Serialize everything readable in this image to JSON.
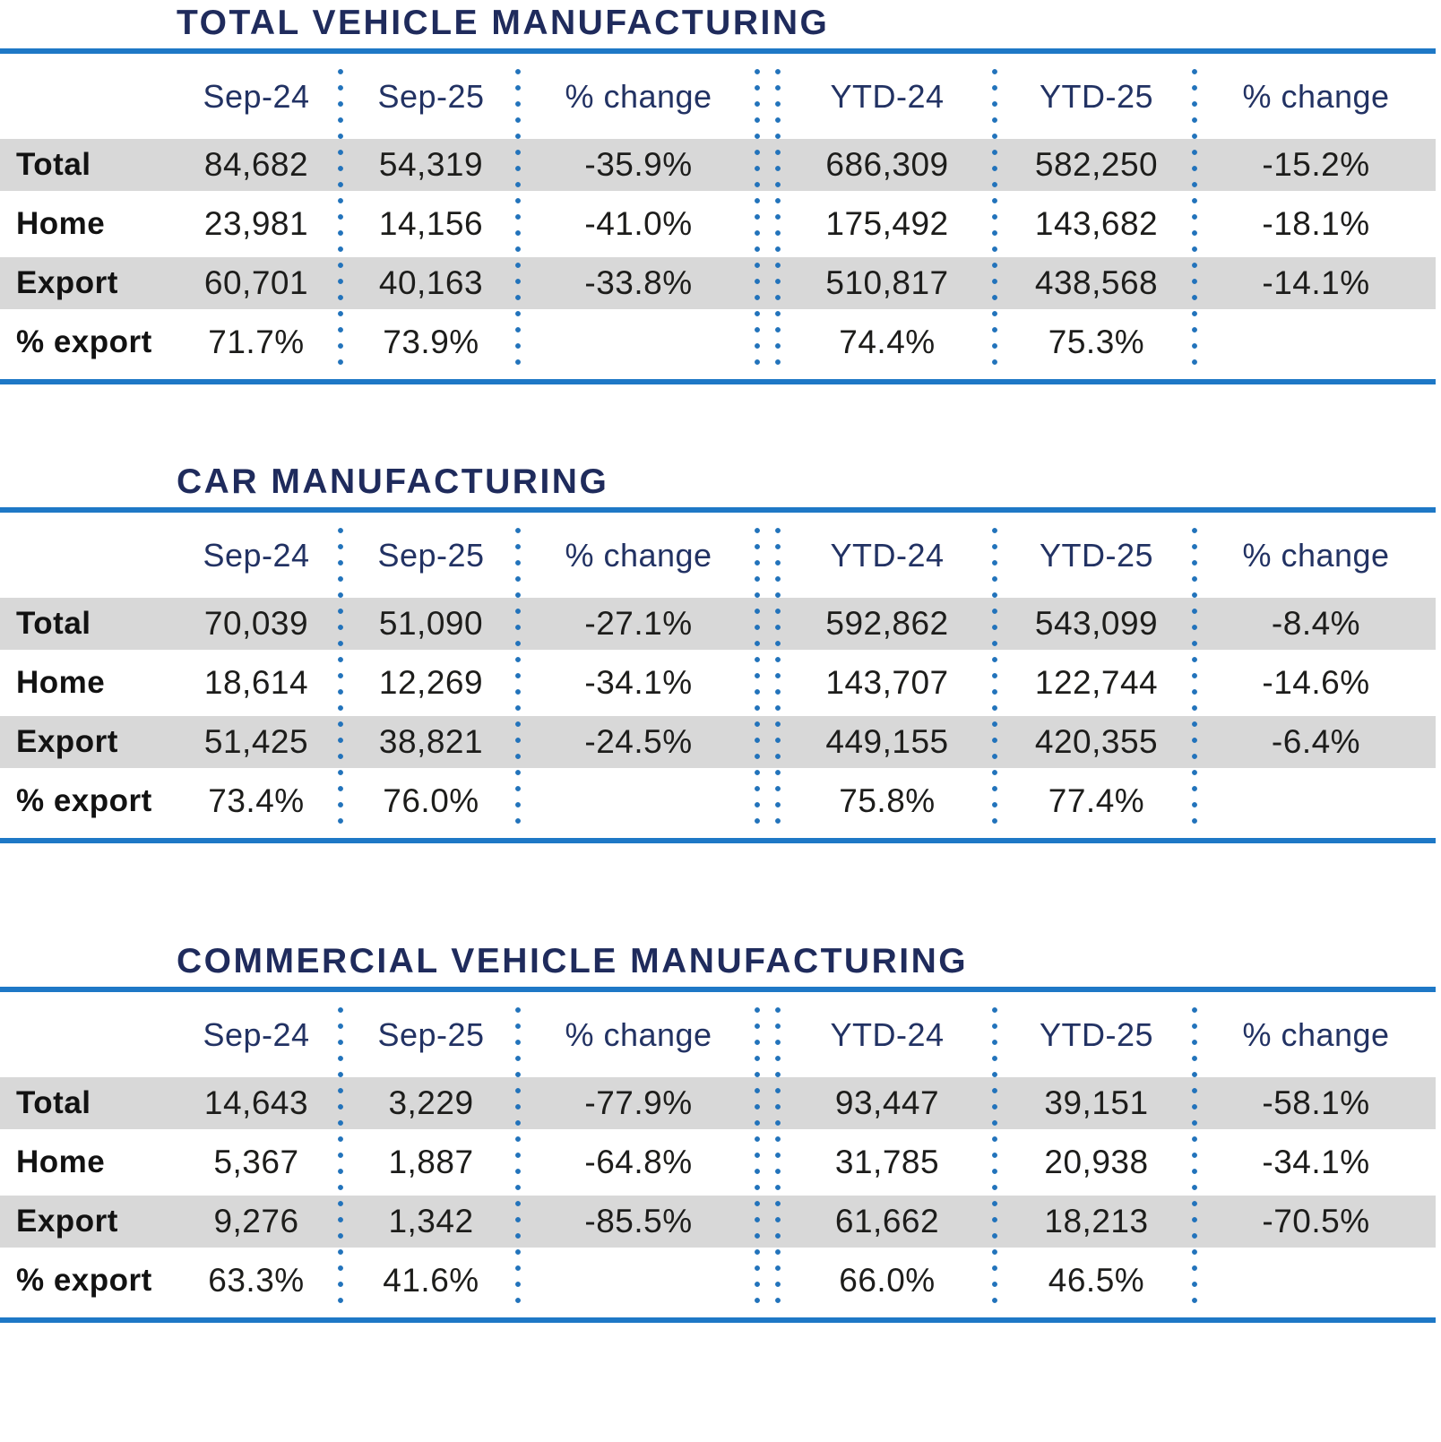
{
  "colors": {
    "title_navy": "#1f2b5c",
    "header_navy": "#223263",
    "rule_blue": "#1e78c6",
    "dot_blue": "#2273bb",
    "row_shade_gray": "#d8d8d8",
    "value_black": "#1d1d1b"
  },
  "chart_data": [
    {
      "type": "table",
      "title": "TOTAL VEHICLE MANUFACTURING",
      "columns": [
        "Sep-24",
        "Sep-25",
        "% change",
        "YTD-24",
        "YTD-25",
        "% change"
      ],
      "rows": [
        {
          "label": "Total",
          "values": [
            "84,682",
            "54,319",
            "-35.9%",
            "686,309",
            "582,250",
            "-15.2%"
          ]
        },
        {
          "label": "Home",
          "values": [
            "23,981",
            "14,156",
            "-41.0%",
            "175,492",
            "143,682",
            "-18.1%"
          ]
        },
        {
          "label": "Export",
          "values": [
            "60,701",
            "40,163",
            "-33.8%",
            "510,817",
            "438,568",
            "-14.1%"
          ]
        },
        {
          "label": "% export",
          "values": [
            "71.7%",
            "73.9%",
            "",
            "74.4%",
            "75.3%",
            ""
          ]
        }
      ]
    },
    {
      "type": "table",
      "title": "CAR MANUFACTURING",
      "columns": [
        "Sep-24",
        "Sep-25",
        "% change",
        "YTD-24",
        "YTD-25",
        "% change"
      ],
      "rows": [
        {
          "label": "Total",
          "values": [
            "70,039",
            "51,090",
            "-27.1%",
            "592,862",
            "543,099",
            "-8.4%"
          ]
        },
        {
          "label": "Home",
          "values": [
            "18,614",
            "12,269",
            "-34.1%",
            "143,707",
            "122,744",
            "-14.6%"
          ]
        },
        {
          "label": "Export",
          "values": [
            "51,425",
            "38,821",
            "-24.5%",
            "449,155",
            "420,355",
            "-6.4%"
          ]
        },
        {
          "label": "% export",
          "values": [
            "73.4%",
            "76.0%",
            "",
            "75.8%",
            "77.4%",
            ""
          ]
        }
      ]
    },
    {
      "type": "table",
      "title": "COMMERCIAL VEHICLE MANUFACTURING",
      "columns": [
        "Sep-24",
        "Sep-25",
        "% change",
        "YTD-24",
        "YTD-25",
        "% change"
      ],
      "rows": [
        {
          "label": "Total",
          "values": [
            "14,643",
            "3,229",
            "-77.9%",
            "93,447",
            "39,151",
            "-58.1%"
          ]
        },
        {
          "label": "Home",
          "values": [
            "5,367",
            "1,887",
            "-64.8%",
            "31,785",
            "20,938",
            "-34.1%"
          ]
        },
        {
          "label": "Export",
          "values": [
            "9,276",
            "1,342",
            "-85.5%",
            "61,662",
            "18,213",
            "-70.5%"
          ]
        },
        {
          "label": "% export",
          "values": [
            "63.3%",
            "41.6%",
            "",
            "66.0%",
            "46.5%",
            ""
          ]
        }
      ]
    }
  ]
}
